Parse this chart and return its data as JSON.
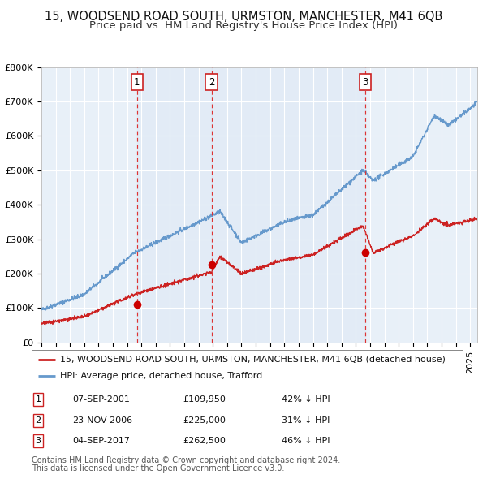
{
  "title": "15, WOODSEND ROAD SOUTH, URMSTON, MANCHESTER, M41 6QB",
  "subtitle": "Price paid vs. HM Land Registry's House Price Index (HPI)",
  "ylim": [
    0,
    800000
  ],
  "yticks": [
    0,
    100000,
    200000,
    300000,
    400000,
    500000,
    600000,
    700000,
    800000
  ],
  "background_color": "#ffffff",
  "plot_bg_color": "#e8f0f8",
  "grid_color": "#ffffff",
  "hpi_line_color": "#6699cc",
  "price_line_color": "#cc2222",
  "sale_dot_color": "#cc0000",
  "sale_marker_size": 7,
  "title_fontsize": 10.5,
  "subtitle_fontsize": 9.5,
  "tick_fontsize": 8,
  "legend_fontsize": 8,
  "table_fontsize": 8,
  "footer_fontsize": 7,
  "sale1_date": "07-SEP-2001",
  "sale1_price": 109950,
  "sale1_year": 2001.68,
  "sale2_date": "23-NOV-2006",
  "sale2_price": 225000,
  "sale2_year": 2006.9,
  "sale3_date": "04-SEP-2017",
  "sale3_price": 262500,
  "sale3_year": 2017.68,
  "sale1_hpi_pct": "42%",
  "sale2_hpi_pct": "31%",
  "sale3_hpi_pct": "46%",
  "legend1_text": "15, WOODSEND ROAD SOUTH, URMSTON, MANCHESTER, M41 6QB (detached house)",
  "legend2_text": "HPI: Average price, detached house, Trafford",
  "footer1": "Contains HM Land Registry data © Crown copyright and database right 2024.",
  "footer2": "This data is licensed under the Open Government Licence v3.0.",
  "xlim_start": 1995,
  "xlim_end": 2025.5
}
